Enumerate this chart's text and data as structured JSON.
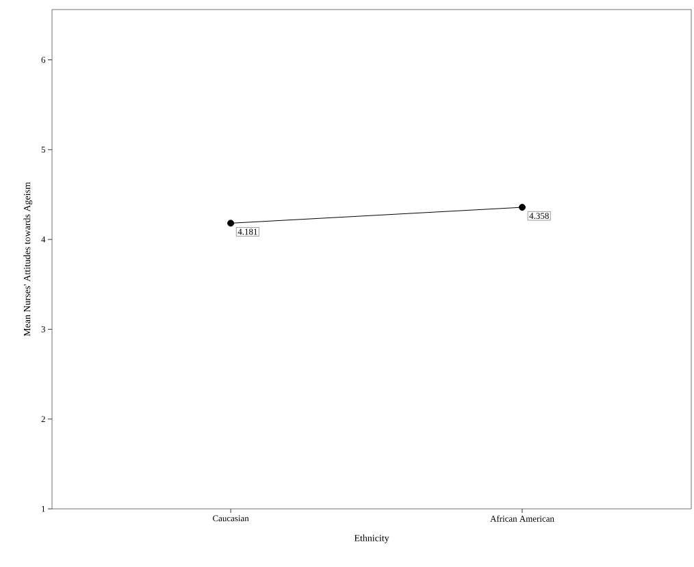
{
  "chart_data": {
    "type": "line",
    "xlabel": "Ethnicity",
    "ylabel": "Mean Nurses' Attitudes towards Ageism",
    "categories": [
      "Caucasian",
      "African American"
    ],
    "series": [
      {
        "color": "#000000",
        "values": [
          4.181,
          4.358
        ]
      }
    ],
    "ylim": [
      1,
      6.56
    ],
    "yticks": [
      1,
      2,
      3,
      4,
      5,
      6
    ],
    "data_labels": true,
    "marker": "circle",
    "line_style": "solid",
    "grid": false
  }
}
